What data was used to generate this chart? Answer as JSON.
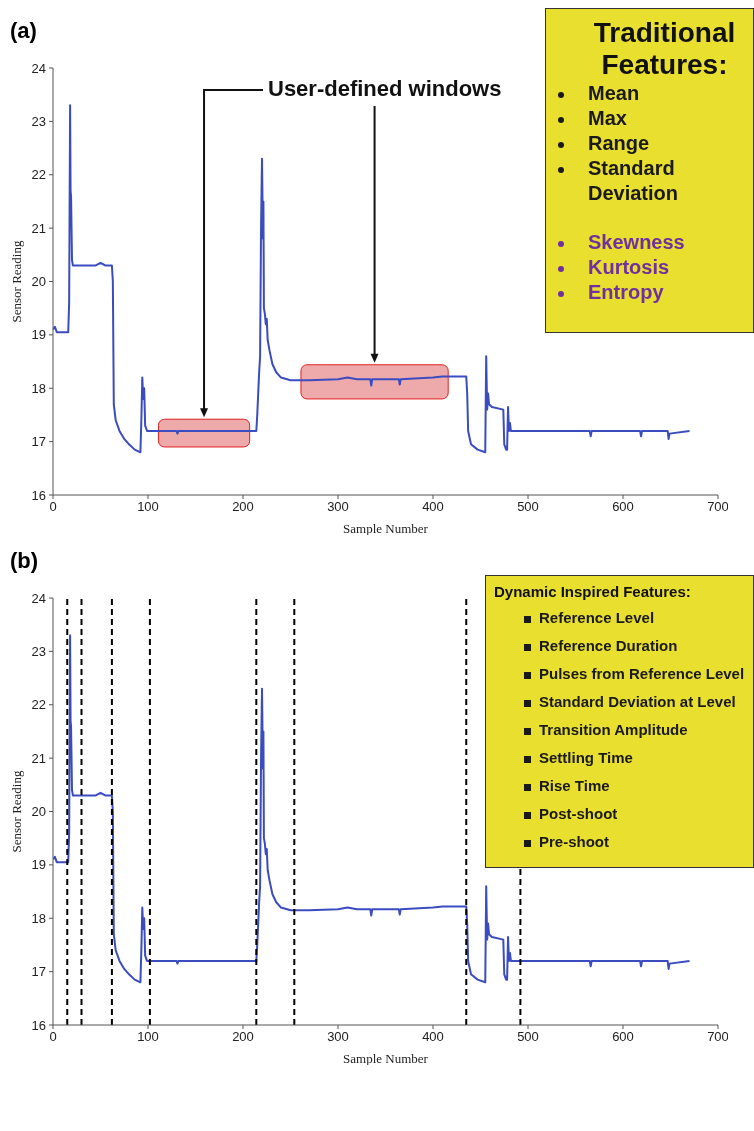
{
  "chart_data": [
    {
      "type": "line",
      "title": "(a)",
      "xlabel": "Sample Number",
      "ylabel": "Sensor Reading",
      "xlim": [
        0,
        700
      ],
      "ylim": [
        16,
        24
      ],
      "xticks": [
        0,
        100,
        200,
        300,
        400,
        500,
        600,
        700
      ],
      "yticks": [
        16,
        17,
        18,
        19,
        20,
        21,
        22,
        23,
        24
      ],
      "grid": false,
      "legend": false,
      "line_style": "solid",
      "annotations": [
        "User-defined windows"
      ],
      "bands": [
        {
          "axis": "x",
          "from": 111,
          "to": 207,
          "color": "#eeaaaa"
        },
        {
          "axis": "x",
          "from": 261,
          "to": 416,
          "color": "#eeaaaa"
        }
      ],
      "series": [
        {
          "color": "#3b4cc0",
          "x": [
            0,
            2,
            4,
            16,
            17,
            18,
            18.5,
            19,
            20,
            21,
            30,
            45,
            50,
            55,
            62,
            63,
            64,
            66,
            70,
            75,
            80,
            86,
            92,
            93,
            94,
            95,
            96,
            97,
            99,
            130,
            131,
            132,
            200,
            214,
            215,
            217,
            218,
            219,
            220,
            221,
            221.5,
            222,
            223,
            224,
            225,
            226,
            228,
            231,
            235,
            240,
            250,
            270,
            300,
            310,
            320,
            334,
            335,
            336,
            364,
            365,
            366,
            400,
            410,
            435,
            436,
            437,
            440,
            447,
            455,
            456,
            457,
            458,
            459,
            462,
            474,
            475,
            477,
            478,
            479,
            480,
            481,
            482,
            500,
            565,
            566,
            567,
            600,
            618,
            619,
            620,
            647,
            648,
            649,
            670
          ],
          "values": [
            19.1,
            19.15,
            19.05,
            19.05,
            19.6,
            23.3,
            21.7,
            21.6,
            20.4,
            20.3,
            20.3,
            20.3,
            20.35,
            20.3,
            20.3,
            20.0,
            17.7,
            17.4,
            17.2,
            17.05,
            16.95,
            16.85,
            16.8,
            17.4,
            18.2,
            17.8,
            18.0,
            17.3,
            17.2,
            17.2,
            17.15,
            17.2,
            17.2,
            17.2,
            17.5,
            18.3,
            18.6,
            21.0,
            22.3,
            20.8,
            21.5,
            19.5,
            19.4,
            19.2,
            19.3,
            18.9,
            18.7,
            18.45,
            18.3,
            18.2,
            18.15,
            18.15,
            18.17,
            18.2,
            18.17,
            18.17,
            18.05,
            18.17,
            18.17,
            18.07,
            18.17,
            18.2,
            18.22,
            18.22,
            17.9,
            17.2,
            16.95,
            16.85,
            16.8,
            18.6,
            17.6,
            17.9,
            17.7,
            17.65,
            17.6,
            16.95,
            16.85,
            16.85,
            17.65,
            17.2,
            17.35,
            17.2,
            17.2,
            17.2,
            17.1,
            17.2,
            17.2,
            17.2,
            17.1,
            17.2,
            17.2,
            17.05,
            17.15,
            17.2
          ]
        }
      ]
    },
    {
      "type": "other",
      "title": "Traditional Features:",
      "annotations": [
        "Mean",
        "Max",
        "Range",
        "Standard Deviation",
        "Skewness",
        "Kurtosis",
        "Entropy"
      ],
      "colors": [
        "#1a1a1a",
        "#1a1a1a",
        "#1a1a1a",
        "#1a1a1a",
        "#7030a0",
        "#7030a0",
        "#7030a0"
      ]
    },
    {
      "type": "line",
      "title": "(b)",
      "xlabel": "Sample Number",
      "ylabel": "Sensor Reading",
      "xlim": [
        0,
        700
      ],
      "ylim": [
        16,
        24
      ],
      "xticks": [
        0,
        100,
        200,
        300,
        400,
        500,
        600,
        700
      ],
      "yticks": [
        16,
        17,
        18,
        19,
        20,
        21,
        22,
        23,
        24
      ],
      "grid": false,
      "legend": false,
      "line_style": "solid",
      "ref_lines": [
        {
          "axis": "x",
          "value": 15,
          "color": "#000000",
          "line_style": "dashed"
        },
        {
          "axis": "x",
          "value": 30,
          "color": "#000000",
          "line_style": "dashed"
        },
        {
          "axis": "x",
          "value": 62,
          "color": "#000000",
          "line_style": "dashed"
        },
        {
          "axis": "x",
          "value": 102,
          "color": "#000000",
          "line_style": "dashed"
        },
        {
          "axis": "x",
          "value": 214,
          "color": "#000000",
          "line_style": "dashed"
        },
        {
          "axis": "x",
          "value": 254,
          "color": "#000000",
          "line_style": "dashed"
        },
        {
          "axis": "x",
          "value": 435,
          "color": "#000000",
          "line_style": "dashed"
        },
        {
          "axis": "x",
          "value": 492,
          "color": "#000000",
          "line_style": "dashed"
        }
      ],
      "series": [
        {
          "color": "#3b4cc0",
          "x": [
            0,
            2,
            4,
            16,
            17,
            18,
            18.5,
            19,
            20,
            21,
            30,
            45,
            50,
            55,
            62,
            63,
            64,
            66,
            70,
            75,
            80,
            86,
            92,
            93,
            94,
            95,
            96,
            97,
            99,
            130,
            131,
            132,
            200,
            214,
            215,
            217,
            218,
            219,
            220,
            221,
            221.5,
            222,
            223,
            224,
            225,
            226,
            228,
            231,
            235,
            240,
            250,
            270,
            300,
            310,
            320,
            334,
            335,
            336,
            364,
            365,
            366,
            400,
            410,
            435,
            436,
            437,
            440,
            447,
            455,
            456,
            457,
            458,
            459,
            462,
            474,
            475,
            477,
            478,
            479,
            480,
            481,
            482,
            500,
            565,
            566,
            567,
            600,
            618,
            619,
            620,
            647,
            648,
            649,
            670
          ],
          "values": [
            19.1,
            19.15,
            19.05,
            19.05,
            19.6,
            23.3,
            21.7,
            21.6,
            20.4,
            20.3,
            20.3,
            20.3,
            20.35,
            20.3,
            20.3,
            20.0,
            17.7,
            17.4,
            17.2,
            17.05,
            16.95,
            16.85,
            16.8,
            17.4,
            18.2,
            17.8,
            18.0,
            17.3,
            17.2,
            17.2,
            17.15,
            17.2,
            17.2,
            17.2,
            17.5,
            18.3,
            18.6,
            21.0,
            22.3,
            20.8,
            21.5,
            19.5,
            19.4,
            19.2,
            19.3,
            18.9,
            18.7,
            18.45,
            18.3,
            18.2,
            18.15,
            18.15,
            18.17,
            18.2,
            18.17,
            18.17,
            18.05,
            18.17,
            18.17,
            18.07,
            18.17,
            18.2,
            18.22,
            18.22,
            17.9,
            17.2,
            16.95,
            16.85,
            16.8,
            18.6,
            17.6,
            17.9,
            17.7,
            17.65,
            17.6,
            16.95,
            16.85,
            16.85,
            17.65,
            17.2,
            17.35,
            17.2,
            17.2,
            17.2,
            17.1,
            17.2,
            17.2,
            17.2,
            17.1,
            17.2,
            17.2,
            17.05,
            17.15,
            17.2
          ]
        }
      ]
    },
    {
      "type": "other",
      "title": "Dynamic Inspired Features:",
      "annotations": [
        "Reference Level",
        "Reference Duration",
        "Pulses from Reference Level",
        "Standard Deviation at Level",
        "Transition Amplitude",
        "Settling Time",
        "Rise Time",
        "Post-shoot",
        "Pre-shoot"
      ],
      "colors": [
        "#1a1a1a",
        "#1a1a1a",
        "#1a1a1a",
        "#1a1a1a",
        "#1a1a1a",
        "#1a1a1a",
        "#1a1a1a",
        "#1a1a1a",
        "#1a1a1a"
      ]
    }
  ]
}
